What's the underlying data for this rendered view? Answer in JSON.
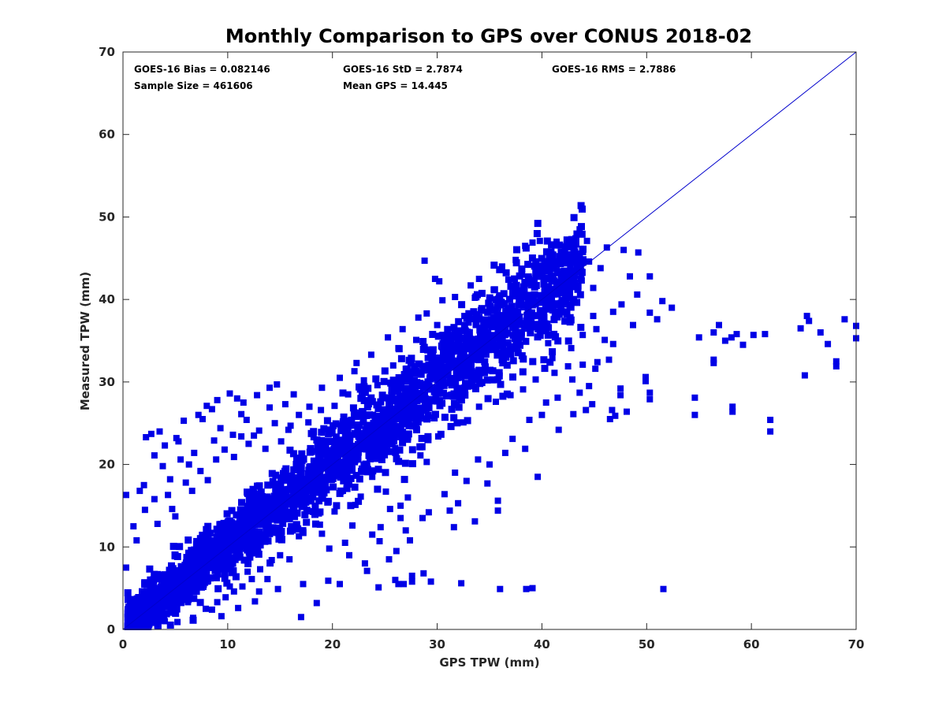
{
  "chart_data": {
    "type": "scatter",
    "title": "Monthly Comparison to GPS over CONUS 2018-02",
    "xlabel": "GPS TPW (mm)",
    "ylabel": "Measured TPW (mm)",
    "xlim": [
      0,
      70
    ],
    "ylim": [
      0,
      70
    ],
    "xticks": [
      0,
      10,
      20,
      30,
      40,
      50,
      60,
      70
    ],
    "yticks": [
      0,
      10,
      20,
      30,
      40,
      50,
      60,
      70
    ],
    "grid": false,
    "legend": "none",
    "marker_color": "#0000e6",
    "line_color": "#0000cc",
    "one_to_one_line": {
      "x": [
        0,
        70
      ],
      "y": [
        0,
        70
      ]
    },
    "annotations": {
      "bias": "GOES-16 Bias = 0.082146",
      "std": "GOES-16 StD = 2.7874",
      "rms": "GOES-16 RMS = 2.7886",
      "sample_size": "Sample Size = 461606",
      "mean_gps": "Mean GPS = 14.445"
    },
    "dense_region": {
      "description": "bulk of 461606 samples along 1:1 line",
      "x_range": [
        0.5,
        44
      ],
      "band_halfwidth_at_x0": 2.5,
      "band_halfwidth_at_x40": 6,
      "bias": 0.082146
    },
    "outliers": [
      [
        0.3,
        16.3
      ],
      [
        0.3,
        7.5
      ],
      [
        1.6,
        16.8
      ],
      [
        2.0,
        17.5
      ],
      [
        2.2,
        23.3
      ],
      [
        2.7,
        23.7
      ],
      [
        3.5,
        24.0
      ],
      [
        4.0,
        22.3
      ],
      [
        5.3,
        22.8
      ],
      [
        5.8,
        25.3
      ],
      [
        7.2,
        26.0
      ],
      [
        7.6,
        25.5
      ],
      [
        8.0,
        27.1
      ],
      [
        8.5,
        26.7
      ],
      [
        9.0,
        27.8
      ],
      [
        10.2,
        28.6
      ],
      [
        10.9,
        28.0
      ],
      [
        11.5,
        27.5
      ],
      [
        12.8,
        28.4
      ],
      [
        14.0,
        29.3
      ],
      [
        14.7,
        29.7
      ],
      [
        16.3,
        28.5
      ],
      [
        3.0,
        15.8
      ],
      [
        3.8,
        19.8
      ],
      [
        4.5,
        18.2
      ],
      [
        5.5,
        20.6
      ],
      [
        6.8,
        21.4
      ],
      [
        9.3,
        24.4
      ],
      [
        11.8,
        25.4
      ],
      [
        12.5,
        23.5
      ],
      [
        15.5,
        27.3
      ],
      [
        17.8,
        27.0
      ],
      [
        19.0,
        29.3
      ],
      [
        20.7,
        30.5
      ],
      [
        22.3,
        32.3
      ],
      [
        23.7,
        33.3
      ],
      [
        25.3,
        35.4
      ],
      [
        26.7,
        36.4
      ],
      [
        28.2,
        37.8
      ],
      [
        29.0,
        38.3
      ],
      [
        30.5,
        39.9
      ],
      [
        31.7,
        40.3
      ],
      [
        33.2,
        41.7
      ],
      [
        34.0,
        42.5
      ],
      [
        36.2,
        44.0
      ],
      [
        37.5,
        44.8
      ],
      [
        38.4,
        46.5
      ],
      [
        39.1,
        46.9
      ],
      [
        39.8,
        47.1
      ],
      [
        41.4,
        47.0
      ],
      [
        42.2,
        46.0
      ],
      [
        43.6,
        48.5
      ],
      [
        44.3,
        47.1
      ],
      [
        46.2,
        46.3
      ],
      [
        47.8,
        46.0
      ],
      [
        49.2,
        45.7
      ],
      [
        28.8,
        44.7
      ],
      [
        29.8,
        42.5
      ],
      [
        30.2,
        42.2
      ],
      [
        48.4,
        42.8
      ],
      [
        50.3,
        42.8
      ],
      [
        51.5,
        39.8
      ],
      [
        52.4,
        39.0
      ],
      [
        49.1,
        40.6
      ],
      [
        50.3,
        38.4
      ],
      [
        51.0,
        37.6
      ],
      [
        46.8,
        38.5
      ],
      [
        47.6,
        39.4
      ],
      [
        48.7,
        36.9
      ],
      [
        44.9,
        38.0
      ],
      [
        55.0,
        35.4
      ],
      [
        56.4,
        36.0
      ],
      [
        56.9,
        36.9
      ],
      [
        57.5,
        35.0
      ],
      [
        58.1,
        35.4
      ],
      [
        58.6,
        35.8
      ],
      [
        59.2,
        34.5
      ],
      [
        60.2,
        35.7
      ],
      [
        61.3,
        35.8
      ],
      [
        64.7,
        36.5
      ],
      [
        65.3,
        38.0
      ],
      [
        65.5,
        37.4
      ],
      [
        66.6,
        36.0
      ],
      [
        67.3,
        34.6
      ],
      [
        68.1,
        32.5
      ],
      [
        68.1,
        31.9
      ],
      [
        68.9,
        37.6
      ],
      [
        70.0,
        36.8
      ],
      [
        70.0,
        35.3
      ],
      [
        65.1,
        30.8
      ],
      [
        56.4,
        32.7
      ],
      [
        56.4,
        32.3
      ],
      [
        54.6,
        28.1
      ],
      [
        54.6,
        26.0
      ],
      [
        58.2,
        27.0
      ],
      [
        58.2,
        26.4
      ],
      [
        61.8,
        25.4
      ],
      [
        61.8,
        24.0
      ],
      [
        49.9,
        30.6
      ],
      [
        49.9,
        30.1
      ],
      [
        50.3,
        28.7
      ],
      [
        50.3,
        27.9
      ],
      [
        47.5,
        29.2
      ],
      [
        47.5,
        28.4
      ],
      [
        47.0,
        25.9
      ],
      [
        46.5,
        25.5
      ],
      [
        46.7,
        26.6
      ],
      [
        48.1,
        26.4
      ],
      [
        45.1,
        31.6
      ],
      [
        45.3,
        32.4
      ],
      [
        46.4,
        32.7
      ],
      [
        46.8,
        34.6
      ],
      [
        43.9,
        32.1
      ],
      [
        44.5,
        29.5
      ],
      [
        42.5,
        31.9
      ],
      [
        42.9,
        30.3
      ],
      [
        43.6,
        28.7
      ],
      [
        40.0,
        26.0
      ],
      [
        41.6,
        24.2
      ],
      [
        39.6,
        18.5
      ],
      [
        34.8,
        17.7
      ],
      [
        35.8,
        15.6
      ],
      [
        35.8,
        14.4
      ],
      [
        33.6,
        13.1
      ],
      [
        32.0,
        15.3
      ],
      [
        31.2,
        14.4
      ],
      [
        31.6,
        12.4
      ],
      [
        30.7,
        16.4
      ],
      [
        29.2,
        14.2
      ],
      [
        28.6,
        13.5
      ],
      [
        27.2,
        16.0
      ],
      [
        26.5,
        15.0
      ],
      [
        26.5,
        13.5
      ],
      [
        25.5,
        14.6
      ],
      [
        24.6,
        12.4
      ],
      [
        23.8,
        11.5
      ],
      [
        24.5,
        10.7
      ],
      [
        27.0,
        12.0
      ],
      [
        27.4,
        10.8
      ],
      [
        26.1,
        9.5
      ],
      [
        25.4,
        8.5
      ],
      [
        23.1,
        8.0
      ],
      [
        21.2,
        10.5
      ],
      [
        21.6,
        9.0
      ],
      [
        19.7,
        9.8
      ],
      [
        19.0,
        11.6
      ],
      [
        22.7,
        16.1
      ],
      [
        22.2,
        15.1
      ],
      [
        28.7,
        6.8
      ],
      [
        29.4,
        5.8
      ],
      [
        27.6,
        6.5
      ],
      [
        26.8,
        5.5
      ],
      [
        26.3,
        5.5
      ],
      [
        27.6,
        5.8
      ],
      [
        26.0,
        6.0
      ],
      [
        24.4,
        5.1
      ],
      [
        23.3,
        7.1
      ],
      [
        20.7,
        5.5
      ],
      [
        17.2,
        5.5
      ],
      [
        15.9,
        8.5
      ],
      [
        17.0,
        1.5
      ],
      [
        18.5,
        3.2
      ],
      [
        16.8,
        11.3
      ],
      [
        32.3,
        5.6
      ],
      [
        36.0,
        4.9
      ],
      [
        38.5,
        4.9
      ],
      [
        39.1,
        5.0
      ],
      [
        51.6,
        4.9
      ],
      [
        17.5,
        15.4
      ],
      [
        18.8,
        12.7
      ],
      [
        15.2,
        11.0
      ],
      [
        13.8,
        6.1
      ],
      [
        11.9,
        7.0
      ],
      [
        10.2,
        5.2
      ],
      [
        13.0,
        4.6
      ],
      [
        14.8,
        4.9
      ],
      [
        9.0,
        3.3
      ],
      [
        7.9,
        2.5
      ],
      [
        6.7,
        1.4
      ],
      [
        9.4,
        1.6
      ],
      [
        11.0,
        2.6
      ],
      [
        8.5,
        2.4
      ],
      [
        12.6,
        3.4
      ],
      [
        5.2,
        0.9
      ],
      [
        4.0,
        1.0
      ],
      [
        2.8,
        0.8
      ],
      [
        6.2,
        3.3
      ],
      [
        19.6,
        5.9
      ],
      [
        21.9,
        12.6
      ],
      [
        20.2,
        14.3
      ],
      [
        23.8,
        18.5
      ],
      [
        25.1,
        16.7
      ],
      [
        29.0,
        20.3
      ],
      [
        31.7,
        19.0
      ],
      [
        32.8,
        18.0
      ],
      [
        33.9,
        20.6
      ],
      [
        35.0,
        20.0
      ],
      [
        36.5,
        21.4
      ],
      [
        37.2,
        23.1
      ],
      [
        38.4,
        21.9
      ],
      [
        40.4,
        27.5
      ],
      [
        38.8,
        25.4
      ],
      [
        41.5,
        28.1
      ],
      [
        43.0,
        26.1
      ],
      [
        44.2,
        26.6
      ],
      [
        44.8,
        27.3
      ],
      [
        40.6,
        34.7
      ],
      [
        41.0,
        32.9
      ],
      [
        1.0,
        12.5
      ],
      [
        1.3,
        10.8
      ],
      [
        2.1,
        14.5
      ],
      [
        3.3,
        12.8
      ],
      [
        4.3,
        16.3
      ],
      [
        4.7,
        14.6
      ],
      [
        5.0,
        13.7
      ],
      [
        6.0,
        17.8
      ],
      [
        6.6,
        16.8
      ],
      [
        7.4,
        19.2
      ],
      [
        8.1,
        18.1
      ],
      [
        8.9,
        20.6
      ],
      [
        9.7,
        21.8
      ],
      [
        10.6,
        20.9
      ],
      [
        11.3,
        23.4
      ],
      [
        12.0,
        22.5
      ],
      [
        13.0,
        24.1
      ],
      [
        13.6,
        21.9
      ],
      [
        14.5,
        25.0
      ],
      [
        15.8,
        24.2
      ],
      [
        16.8,
        26.0
      ],
      [
        17.7,
        25.1
      ],
      [
        18.2,
        23.3
      ],
      [
        3.0,
        21.1
      ],
      [
        5.1,
        23.2
      ],
      [
        6.3,
        20.0
      ],
      [
        8.7,
        22.9
      ],
      [
        10.5,
        23.6
      ],
      [
        11.3,
        26.1
      ],
      [
        14.0,
        26.9
      ],
      [
        15.1,
        22.8
      ],
      [
        22.1,
        31.3
      ],
      [
        23.0,
        30.2
      ],
      [
        25.8,
        32.0
      ],
      [
        26.3,
        34.1
      ],
      [
        28.0,
        35.1
      ],
      [
        30.0,
        36.9
      ],
      [
        32.6,
        38.0
      ],
      [
        33.6,
        40.2
      ],
      [
        35.4,
        41.2
      ],
      [
        36.8,
        42.4
      ],
      [
        38.1,
        43.0
      ],
      [
        40.3,
        43.4
      ],
      [
        41.8,
        44.3
      ],
      [
        43.3,
        45.2
      ],
      [
        44.5,
        44.6
      ],
      [
        45.6,
        43.8
      ],
      [
        44.9,
        41.4
      ],
      [
        43.8,
        42.3
      ],
      [
        42.7,
        43.8
      ],
      [
        37.8,
        40.6
      ],
      [
        35.7,
        38.8
      ],
      [
        33.0,
        37.2
      ],
      [
        34.3,
        36.0
      ],
      [
        31.0,
        34.0
      ],
      [
        29.1,
        32.9
      ],
      [
        27.0,
        31.6
      ],
      [
        24.3,
        29.6
      ],
      [
        20.2,
        27.1
      ],
      [
        21.5,
        28.5
      ],
      [
        18.9,
        26.6
      ],
      [
        16.0,
        24.7
      ],
      [
        19.4,
        18.3
      ],
      [
        18.4,
        17.0
      ],
      [
        17.6,
        14.5
      ],
      [
        16.6,
        12.2
      ],
      [
        15.0,
        9.0
      ],
      [
        14.2,
        8.4
      ],
      [
        13.1,
        7.3
      ],
      [
        12.3,
        6.1
      ],
      [
        11.4,
        5.2
      ],
      [
        10.6,
        4.6
      ],
      [
        9.8,
        3.9
      ],
      [
        21.0,
        16.8
      ],
      [
        22.8,
        19.5
      ],
      [
        24.5,
        21.0
      ],
      [
        26.0,
        22.0
      ],
      [
        27.2,
        23.0
      ],
      [
        28.4,
        21.1
      ],
      [
        30.1,
        23.4
      ],
      [
        31.3,
        24.6
      ],
      [
        32.5,
        25.1
      ],
      [
        34.0,
        27.0
      ],
      [
        35.6,
        27.6
      ],
      [
        37.0,
        28.4
      ],
      [
        38.2,
        29.1
      ],
      [
        39.4,
        30.3
      ],
      [
        41.2,
        31.1
      ],
      [
        42.8,
        34.1
      ],
      [
        43.9,
        35.7
      ],
      [
        45.2,
        36.4
      ],
      [
        46.0,
        35.1
      ]
    ]
  }
}
